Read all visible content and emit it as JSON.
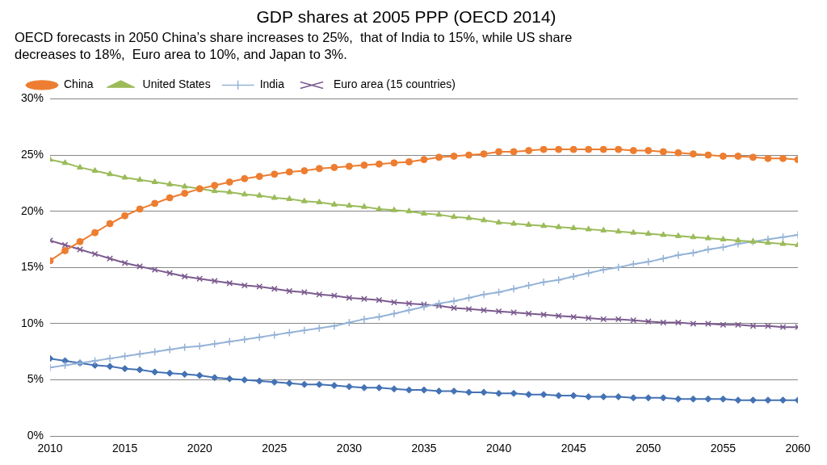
{
  "chart_data": {
    "type": "line",
    "title": "GDP shares at 2005 PPP (OECD 2014)",
    "subtitle": [
      "OECD forecasts in 2050 China’s share increases to 25%,  that of India to 15%, while US share",
      "decreases to 18%,  Euro area to 10%, and Japan to 3%."
    ],
    "x": [
      2010,
      2011,
      2012,
      2013,
      2014,
      2015,
      2016,
      2017,
      2018,
      2019,
      2020,
      2021,
      2022,
      2023,
      2024,
      2025,
      2026,
      2027,
      2028,
      2029,
      2030,
      2031,
      2032,
      2033,
      2034,
      2035,
      2036,
      2037,
      2038,
      2039,
      2040,
      2041,
      2042,
      2043,
      2044,
      2045,
      2046,
      2047,
      2048,
      2049,
      2050,
      2051,
      2052,
      2053,
      2054,
      2055,
      2056,
      2057,
      2058,
      2059,
      2060
    ],
    "xlim": [
      2010,
      2060
    ],
    "xticks": [
      2010,
      2015,
      2020,
      2025,
      2030,
      2035,
      2040,
      2045,
      2050,
      2055,
      2060
    ],
    "ylim": [
      0,
      30
    ],
    "yticks": [
      {
        "value": 0,
        "label": "0%"
      },
      {
        "value": 5,
        "label": "5%"
      },
      {
        "value": 10,
        "label": "10%"
      },
      {
        "value": 15,
        "label": "15%"
      },
      {
        "value": 20,
        "label": "20%"
      },
      {
        "value": 25,
        "label": "25%"
      },
      {
        "value": 30,
        "label": "30%"
      }
    ],
    "grid": true,
    "legend": "top",
    "series": [
      {
        "name": "China",
        "color": "#ED7D31",
        "marker": "circle",
        "values": [
          15.6,
          16.5,
          17.3,
          18.1,
          18.9,
          19.6,
          20.2,
          20.7,
          21.2,
          21.6,
          22.0,
          22.3,
          22.6,
          22.9,
          23.1,
          23.3,
          23.5,
          23.6,
          23.8,
          23.9,
          24.0,
          24.1,
          24.2,
          24.3,
          24.4,
          24.6,
          24.8,
          24.9,
          25.0,
          25.1,
          25.3,
          25.3,
          25.4,
          25.5,
          25.5,
          25.5,
          25.5,
          25.5,
          25.5,
          25.4,
          25.4,
          25.3,
          25.2,
          25.1,
          25.0,
          24.9,
          24.9,
          24.8,
          24.7,
          24.7,
          24.6
        ]
      },
      {
        "name": "United States",
        "color": "#9BBB59",
        "marker": "triangle",
        "values": [
          24.6,
          24.3,
          23.9,
          23.6,
          23.3,
          23.0,
          22.8,
          22.6,
          22.4,
          22.2,
          22.0,
          21.8,
          21.7,
          21.5,
          21.4,
          21.2,
          21.1,
          20.9,
          20.8,
          20.6,
          20.5,
          20.4,
          20.2,
          20.1,
          20.0,
          19.8,
          19.7,
          19.5,
          19.4,
          19.2,
          19.0,
          18.9,
          18.8,
          18.7,
          18.6,
          18.5,
          18.4,
          18.3,
          18.2,
          18.1,
          18.0,
          17.9,
          17.8,
          17.7,
          17.6,
          17.5,
          17.4,
          17.3,
          17.2,
          17.1,
          17.0
        ]
      },
      {
        "name": "India",
        "color": "#95B3D7",
        "marker": "cross",
        "values": [
          6.1,
          6.3,
          6.5,
          6.7,
          6.9,
          7.1,
          7.3,
          7.5,
          7.7,
          7.9,
          8.0,
          8.2,
          8.4,
          8.6,
          8.8,
          9.0,
          9.2,
          9.4,
          9.6,
          9.8,
          10.1,
          10.4,
          10.6,
          10.9,
          11.2,
          11.5,
          11.8,
          12.0,
          12.3,
          12.6,
          12.8,
          13.1,
          13.4,
          13.7,
          13.9,
          14.2,
          14.5,
          14.8,
          15.0,
          15.3,
          15.5,
          15.8,
          16.1,
          16.3,
          16.6,
          16.8,
          17.1,
          17.3,
          17.5,
          17.7,
          17.9
        ]
      },
      {
        "name": "Euro area (15 countries)",
        "color": "#7B5A8E",
        "marker": "x",
        "values": [
          17.4,
          17.0,
          16.6,
          16.2,
          15.8,
          15.4,
          15.1,
          14.8,
          14.5,
          14.2,
          14.0,
          13.8,
          13.6,
          13.4,
          13.3,
          13.1,
          12.9,
          12.8,
          12.6,
          12.5,
          12.3,
          12.2,
          12.1,
          11.9,
          11.8,
          11.7,
          11.6,
          11.4,
          11.3,
          11.2,
          11.1,
          11.0,
          10.9,
          10.8,
          10.7,
          10.6,
          10.5,
          10.4,
          10.4,
          10.3,
          10.2,
          10.1,
          10.1,
          10.0,
          10.0,
          9.9,
          9.9,
          9.8,
          9.8,
          9.7,
          9.7
        ]
      },
      {
        "color": "#4472B4",
        "marker": "diamond",
        "values": [
          6.9,
          6.7,
          6.5,
          6.3,
          6.2,
          6.0,
          5.9,
          5.7,
          5.6,
          5.5,
          5.4,
          5.2,
          5.1,
          5.0,
          4.9,
          4.8,
          4.7,
          4.6,
          4.6,
          4.5,
          4.4,
          4.3,
          4.3,
          4.2,
          4.1,
          4.1,
          4.0,
          4.0,
          3.9,
          3.9,
          3.8,
          3.8,
          3.7,
          3.7,
          3.6,
          3.6,
          3.5,
          3.5,
          3.5,
          3.4,
          3.4,
          3.4,
          3.3,
          3.3,
          3.3,
          3.3,
          3.2,
          3.2,
          3.2,
          3.2,
          3.2
        ]
      }
    ]
  }
}
